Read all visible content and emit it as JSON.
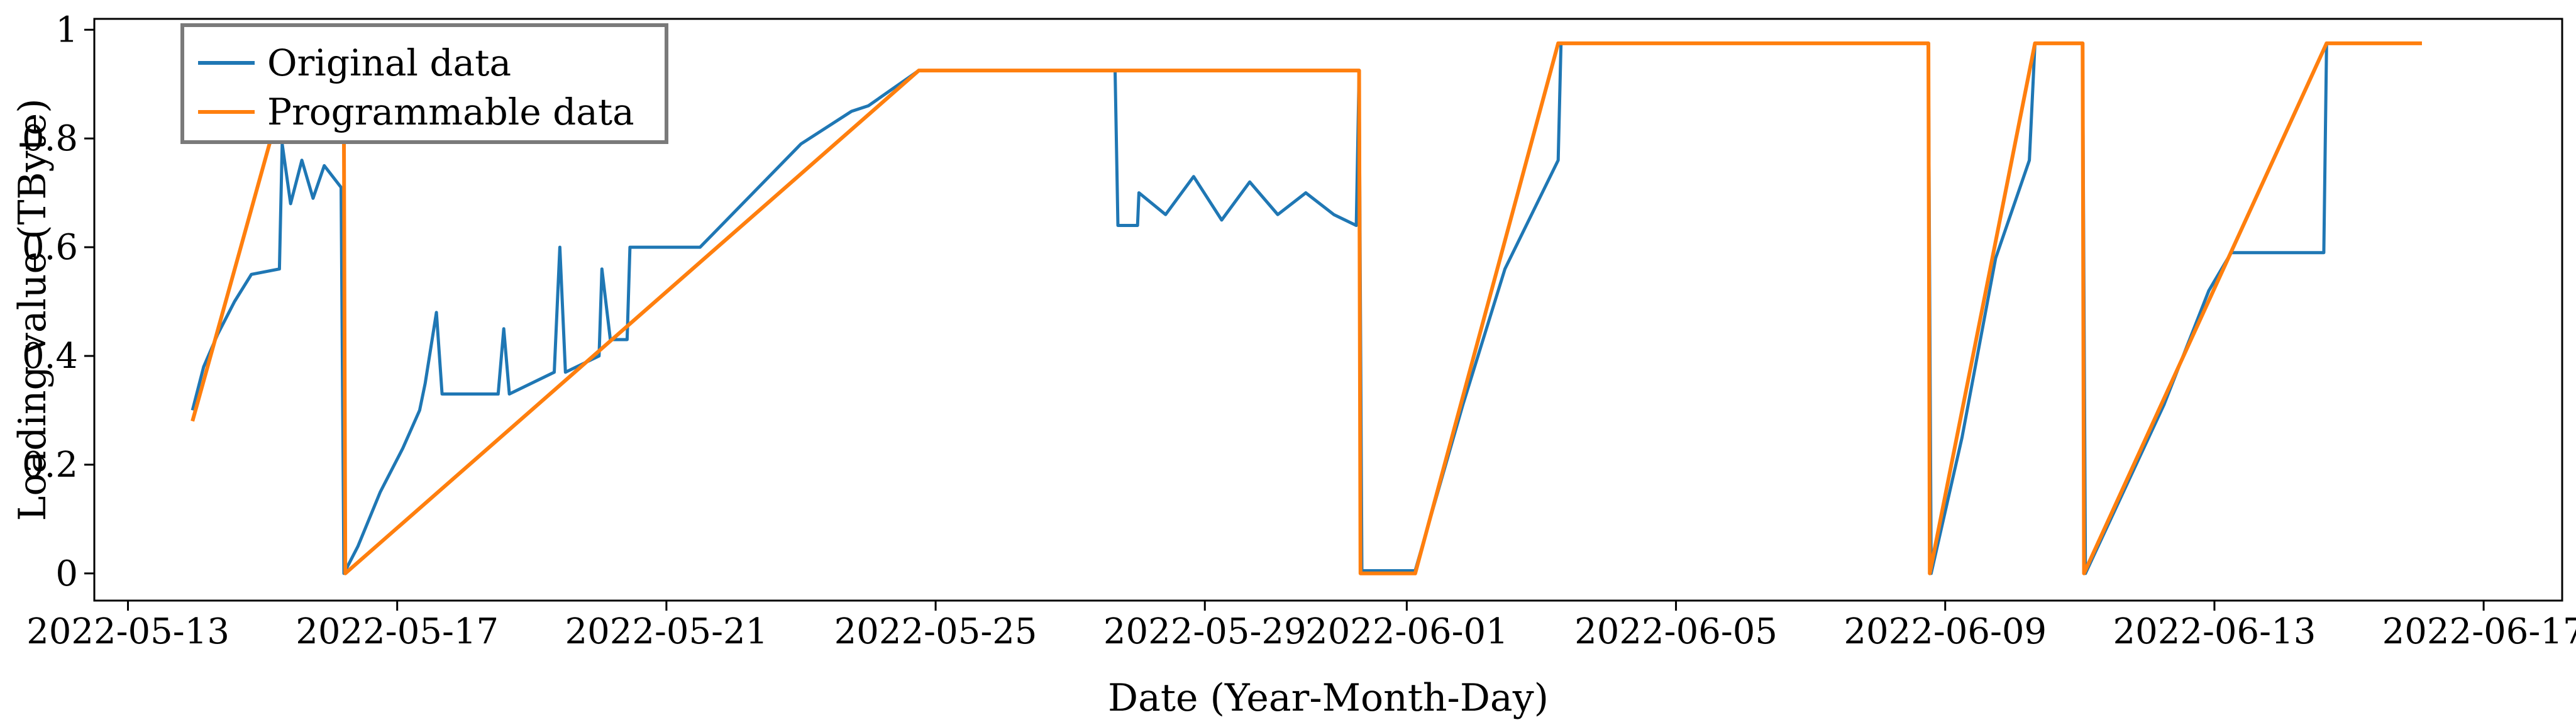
{
  "chart_data": {
    "type": "line",
    "xlabel": "Date (Year-Month-Day)",
    "ylabel": "Loading value (TByte)",
    "xlim": [
      "2022-05-12T12:00",
      "2022-06-18T04:00"
    ],
    "ylim": [
      -0.05,
      1.02
    ],
    "xticks": [
      "2022-05-13",
      "2022-05-17",
      "2022-05-21",
      "2022-05-25",
      "2022-05-29",
      "2022-06-01",
      "2022-06-05",
      "2022-06-09",
      "2022-06-13",
      "2022-06-17"
    ],
    "yticks": [
      0,
      0.2,
      0.4,
      0.6,
      0.8,
      1
    ],
    "ytick_labels": [
      "0",
      "0.2",
      "0.4",
      "0.6",
      "0.8",
      "1"
    ],
    "grid": false,
    "legend_position": "top-left",
    "series": [
      {
        "name": "Original data",
        "color": "#1f77b4",
        "points": [
          [
            "2022-05-13T23:00",
            0.3
          ],
          [
            "2022-05-14T03:00",
            0.38
          ],
          [
            "2022-05-14T08:00",
            0.44
          ],
          [
            "2022-05-14T14:00",
            0.5
          ],
          [
            "2022-05-14T20:00",
            0.55
          ],
          [
            "2022-05-15T06:00",
            0.56
          ],
          [
            "2022-05-15T07:00",
            0.79
          ],
          [
            "2022-05-15T10:00",
            0.68
          ],
          [
            "2022-05-15T14:00",
            0.76
          ],
          [
            "2022-05-15T18:00",
            0.69
          ],
          [
            "2022-05-15T22:00",
            0.75
          ],
          [
            "2022-05-16T04:00",
            0.71
          ],
          [
            "2022-05-16T05:00",
            0.0
          ],
          [
            "2022-05-16T10:00",
            0.05
          ],
          [
            "2022-05-16T18:00",
            0.15
          ],
          [
            "2022-05-17T02:00",
            0.23
          ],
          [
            "2022-05-17T08:00",
            0.3
          ],
          [
            "2022-05-17T10:00",
            0.35
          ],
          [
            "2022-05-17T14:00",
            0.48
          ],
          [
            "2022-05-17T16:00",
            0.33
          ],
          [
            "2022-05-18T12:00",
            0.33
          ],
          [
            "2022-05-18T14:00",
            0.45
          ],
          [
            "2022-05-18T16:00",
            0.33
          ],
          [
            "2022-05-19T08:00",
            0.37
          ],
          [
            "2022-05-19T10:00",
            0.6
          ],
          [
            "2022-05-19T12:00",
            0.37
          ],
          [
            "2022-05-20T00:00",
            0.4
          ],
          [
            "2022-05-20T01:00",
            0.56
          ],
          [
            "2022-05-20T04:00",
            0.43
          ],
          [
            "2022-05-20T10:00",
            0.43
          ],
          [
            "2022-05-20T11:00",
            0.6
          ],
          [
            "2022-05-21T12:00",
            0.6
          ],
          [
            "2022-05-23T00:00",
            0.79
          ],
          [
            "2022-05-23T18:00",
            0.85
          ],
          [
            "2022-05-24T00:00",
            0.86
          ],
          [
            "2022-05-24T18:00",
            0.925
          ],
          [
            "2022-05-27T16:00",
            0.925
          ],
          [
            "2022-05-27T17:00",
            0.64
          ],
          [
            "2022-05-28T00:00",
            0.64
          ],
          [
            "2022-05-28T00:30",
            0.7
          ],
          [
            "2022-05-28T10:00",
            0.66
          ],
          [
            "2022-05-28T20:00",
            0.73
          ],
          [
            "2022-05-29T06:00",
            0.65
          ],
          [
            "2022-05-29T16:00",
            0.72
          ],
          [
            "2022-05-30T02:00",
            0.66
          ],
          [
            "2022-05-30T12:00",
            0.7
          ],
          [
            "2022-05-30T22:00",
            0.66
          ],
          [
            "2022-05-31T06:00",
            0.64
          ],
          [
            "2022-05-31T07:00",
            0.925
          ],
          [
            "2022-05-31T08:00",
            0.005
          ],
          [
            "2022-06-01T03:00",
            0.005
          ],
          [
            "2022-06-01T20:00",
            0.31
          ],
          [
            "2022-06-02T11:00",
            0.56
          ],
          [
            "2022-06-03T06:00",
            0.76
          ],
          [
            "2022-06-03T07:00",
            0.975
          ],
          [
            "2022-06-08T18:00",
            0.975
          ],
          [
            "2022-06-08T19:00",
            0.0
          ],
          [
            "2022-06-09T06:00",
            0.25
          ],
          [
            "2022-06-09T18:00",
            0.58
          ],
          [
            "2022-06-10T06:00",
            0.76
          ],
          [
            "2022-06-10T08:00",
            0.975
          ],
          [
            "2022-06-11T01:00",
            0.975
          ],
          [
            "2022-06-11T02:00",
            0.0
          ],
          [
            "2022-06-12T06:00",
            0.31
          ],
          [
            "2022-06-12T22:00",
            0.52
          ],
          [
            "2022-06-13T06:00",
            0.59
          ],
          [
            "2022-06-14T15:00",
            0.59
          ],
          [
            "2022-06-14T16:00",
            0.975
          ],
          [
            "2022-06-16T02:00",
            0.975
          ]
        ]
      },
      {
        "name": "Programmable data",
        "color": "#ff7f0e",
        "points": [
          [
            "2022-05-13T23:00",
            0.28
          ],
          [
            "2022-05-15T03:00",
            0.8
          ],
          [
            "2022-05-16T05:00",
            0.8
          ],
          [
            "2022-05-16T05:30",
            0.0
          ],
          [
            "2022-05-24T18:00",
            0.925
          ],
          [
            "2022-05-31T07:00",
            0.925
          ],
          [
            "2022-05-31T07:30",
            0.0
          ],
          [
            "2022-06-01T03:00",
            0.0
          ],
          [
            "2022-06-03T06:00",
            0.975
          ],
          [
            "2022-06-08T18:00",
            0.975
          ],
          [
            "2022-06-08T18:30",
            0.0
          ],
          [
            "2022-06-10T08:00",
            0.975
          ],
          [
            "2022-06-11T01:00",
            0.975
          ],
          [
            "2022-06-11T01:30",
            0.0
          ],
          [
            "2022-06-14T16:00",
            0.975
          ],
          [
            "2022-06-16T02:00",
            0.975
          ]
        ]
      }
    ]
  }
}
